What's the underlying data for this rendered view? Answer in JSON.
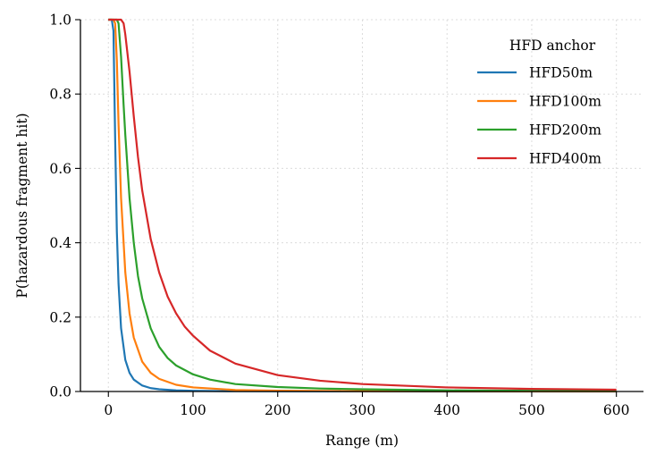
{
  "chart_data": {
    "type": "line",
    "xlabel": "Range (m)",
    "ylabel": "P(hazardous fragment hit)",
    "xlim": [
      -33,
      632
    ],
    "ylim": [
      0,
      1.0
    ],
    "xticks": [
      0,
      100,
      200,
      300,
      400,
      500,
      600
    ],
    "xtick_labels": [
      "0",
      "100",
      "200",
      "300",
      "400",
      "500",
      "600"
    ],
    "yticks": [
      0,
      0.2,
      0.4,
      0.6,
      0.8,
      1.0
    ],
    "ytick_labels": [
      "0.0",
      "0.2",
      "0.4",
      "0.6",
      "0.8",
      "1.0"
    ],
    "grid": true,
    "legend": {
      "title": "HFD anchor",
      "placement": "top-right"
    },
    "series": [
      {
        "name": "HFD50m",
        "color": "#1f77b4",
        "x": [
          0,
          2,
          4,
          6,
          8,
          10,
          12,
          15,
          20,
          25,
          30,
          40,
          50,
          60,
          80,
          100,
          150,
          200,
          300,
          400,
          500,
          600
        ],
        "y": [
          1.0,
          1.0,
          1.0,
          0.97,
          0.68,
          0.43,
          0.29,
          0.17,
          0.085,
          0.05,
          0.032,
          0.016,
          0.009,
          0.006,
          0.003,
          0.0018,
          0.0007,
          0.0004,
          0.00015,
          8e-05,
          5e-05,
          3e-05
        ]
      },
      {
        "name": "HFD100m",
        "color": "#ff7f0e",
        "x": [
          0,
          3,
          6,
          8,
          10,
          12,
          15,
          20,
          25,
          30,
          40,
          50,
          60,
          80,
          100,
          150,
          200,
          300,
          400,
          500,
          600
        ],
        "y": [
          1.0,
          1.0,
          1.0,
          0.99,
          0.89,
          0.72,
          0.52,
          0.32,
          0.21,
          0.145,
          0.08,
          0.05,
          0.034,
          0.018,
          0.011,
          0.004,
          0.0022,
          0.0009,
          0.0005,
          0.0003,
          0.0002
        ]
      },
      {
        "name": "HFD200m",
        "color": "#2ca02c",
        "x": [
          0,
          5,
          10,
          12,
          15,
          18,
          20,
          25,
          30,
          35,
          40,
          50,
          60,
          70,
          80,
          100,
          120,
          150,
          200,
          250,
          300,
          400,
          500,
          600
        ],
        "y": [
          1.0,
          1.0,
          1.0,
          0.99,
          0.9,
          0.77,
          0.69,
          0.52,
          0.4,
          0.31,
          0.25,
          0.17,
          0.12,
          0.09,
          0.07,
          0.046,
          0.032,
          0.02,
          0.012,
          0.008,
          0.006,
          0.003,
          0.002,
          0.0015
        ]
      },
      {
        "name": "HFD400m",
        "color": "#d62728",
        "x": [
          0,
          5,
          10,
          15,
          18,
          20,
          25,
          30,
          35,
          40,
          50,
          60,
          70,
          80,
          90,
          100,
          120,
          150,
          200,
          250,
          300,
          400,
          500,
          600
        ],
        "y": [
          1.0,
          1.0,
          1.0,
          1.0,
          0.99,
          0.96,
          0.86,
          0.74,
          0.63,
          0.54,
          0.41,
          0.32,
          0.255,
          0.21,
          0.175,
          0.15,
          0.11,
          0.075,
          0.044,
          0.029,
          0.02,
          0.011,
          0.007,
          0.005
        ]
      }
    ]
  }
}
